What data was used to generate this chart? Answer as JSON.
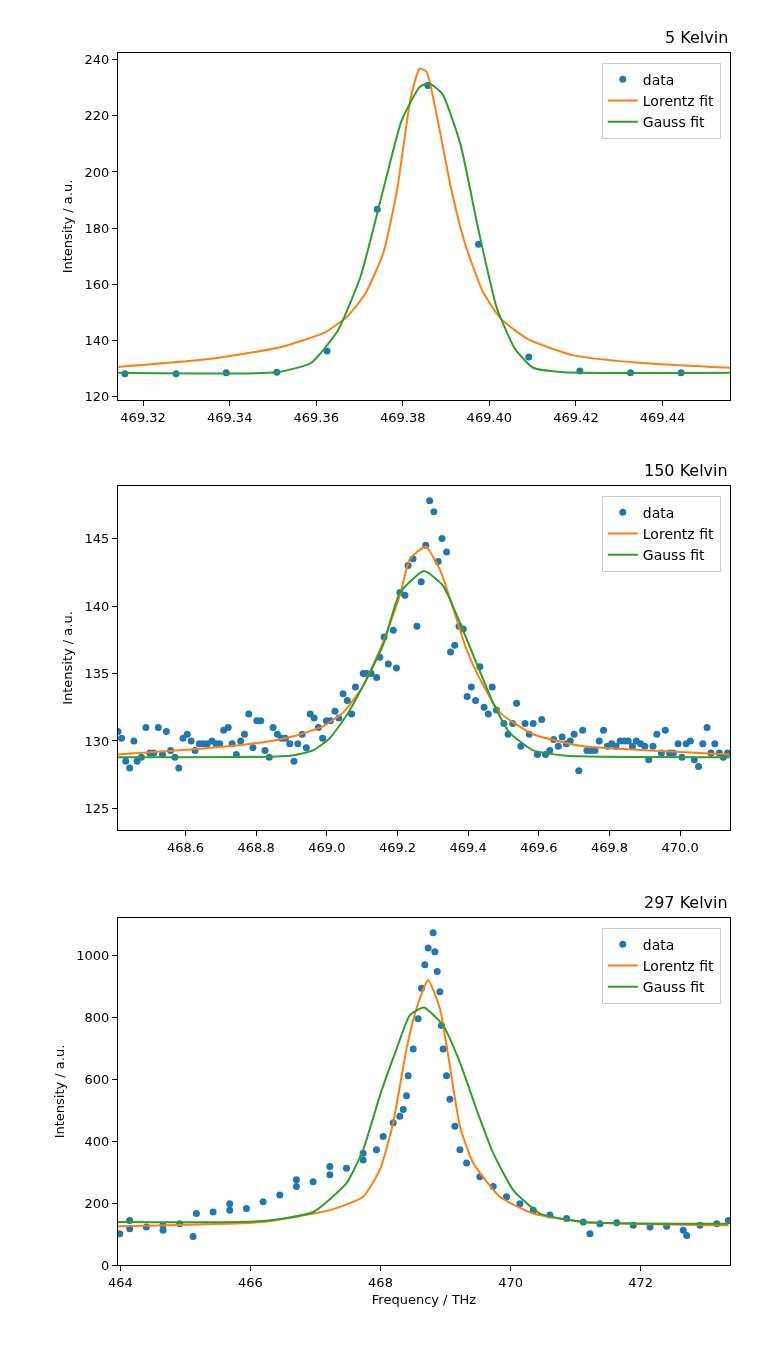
{
  "chart_data": [
    {
      "type": "scatter",
      "title": "5 Kelvin",
      "ylabel": "Intensity / a.u.",
      "xlim": [
        469.3142,
        469.4556
      ],
      "ylim": [
        118.7,
        242.4
      ],
      "xticks": [
        {
          "value": 469.32,
          "label": "469.32"
        },
        {
          "value": 469.34,
          "label": "469.34"
        },
        {
          "value": 469.36,
          "label": "469.36"
        },
        {
          "value": 469.38,
          "label": "469.38"
        },
        {
          "value": 469.4,
          "label": "469.40"
        },
        {
          "value": 469.42,
          "label": "469.42"
        },
        {
          "value": 469.44,
          "label": "469.44"
        }
      ],
      "yticks": [
        120,
        140,
        160,
        180,
        200,
        220,
        240
      ],
      "legend": "top right",
      "series": [
        {
          "name": "data",
          "marker": "circle",
          "color": "#1f77b4",
          "x": [
            469.3158,
            469.3276,
            469.3392,
            469.3509,
            469.3625,
            469.3741,
            469.3858,
            469.3975,
            469.4091,
            469.4209,
            469.4326,
            469.4443
          ],
          "values": [
            128.1,
            128.1,
            128.4,
            128.6,
            136.2,
            186.7,
            230.8,
            174.2,
            134.0,
            129.0,
            128.4,
            128.4
          ]
        },
        {
          "name": "Lorentz fit",
          "type": "line",
          "marker": "none",
          "color": "#ff7f0e",
          "x": [
            469.3142,
            469.3357,
            469.3514,
            469.3619,
            469.3671,
            469.3713,
            469.3755,
            469.3787,
            469.3818,
            469.3839,
            469.3855,
            469.3881,
            469.3912,
            469.3944,
            469.3985,
            469.4027,
            469.409,
            469.4195,
            469.4352,
            469.4556
          ],
          "values": [
            130.5,
            133.4,
            137.4,
            142.7,
            148.4,
            156.5,
            171.1,
            193.8,
            226.2,
            236.8,
            235.7,
            218.2,
            193.8,
            174.3,
            157.3,
            147.6,
            140.3,
            134.6,
            131.9,
            130.2
          ]
        },
        {
          "name": "Gauss fit",
          "type": "line",
          "marker": "none",
          "color": "#2ca02c",
          "x": [
            469.3142,
            469.3509,
            469.3588,
            469.365,
            469.3703,
            469.3755,
            469.3797,
            469.3839,
            469.386,
            469.3891,
            469.3933,
            469.3975,
            469.4017,
            469.4059,
            469.4101,
            469.4174,
            469.4556
          ],
          "values": [
            128.4,
            128.6,
            131.9,
            143.5,
            163.0,
            193.8,
            218.2,
            230.3,
            231.6,
            227.9,
            210.0,
            179.2,
            151.6,
            137.0,
            130.2,
            128.6,
            128.4
          ]
        }
      ]
    },
    {
      "type": "scatter",
      "title": "150 Kelvin",
      "ylabel": "Intensity / a.u.",
      "xlim": [
        468.409,
        470.141
      ],
      "ylim": [
        123.4,
        148.9
      ],
      "xticks": [
        468.6,
        468.8,
        {
          "value": 469.0,
          "label": "469.0"
        },
        469.2,
        469.4,
        469.6,
        469.8,
        {
          "value": 470.0,
          "label": "470.0"
        }
      ],
      "yticks": [
        125,
        130,
        135,
        140,
        145
      ],
      "legend": "top right",
      "series": [
        {
          "name": "data",
          "marker": "circle",
          "color": "#1f77b4",
          "x": [
            468.409,
            468.419,
            468.431,
            468.442,
            468.454,
            468.463,
            468.475,
            468.488,
            468.499,
            468.51,
            468.523,
            468.535,
            468.546,
            468.558,
            468.57,
            468.581,
            468.593,
            468.605,
            468.616,
            468.627,
            468.639,
            468.65,
            468.662,
            468.675,
            468.686,
            468.697,
            468.708,
            468.721,
            468.732,
            468.744,
            468.756,
            468.767,
            468.779,
            468.791,
            468.802,
            468.813,
            468.825,
            468.837,
            468.848,
            468.86,
            468.872,
            468.883,
            468.895,
            468.907,
            468.918,
            468.93,
            468.942,
            468.953,
            468.964,
            468.976,
            468.988,
            468.999,
            469.01,
            469.023,
            469.034,
            469.046,
            469.058,
            469.07,
            469.081,
            469.103,
            469.112,
            469.125,
            469.141,
            469.15,
            469.162,
            469.174,
            469.188,
            469.197,
            469.207,
            469.221,
            469.23,
            469.244,
            469.255,
            469.267,
            469.28,
            469.291,
            469.303,
            469.315,
            469.326,
            469.339,
            469.35,
            469.362,
            469.374,
            469.386,
            469.397,
            469.409,
            469.421,
            469.433,
            469.445,
            469.457,
            469.468,
            469.48,
            469.501,
            469.513,
            469.526,
            469.537,
            469.549,
            469.561,
            469.573,
            469.584,
            469.596,
            469.608,
            469.619,
            469.631,
            469.642,
            469.655,
            469.666,
            469.678,
            469.689,
            469.7,
            469.713,
            469.724,
            469.736,
            469.747,
            469.759,
            469.771,
            469.783,
            469.794,
            469.806,
            469.818,
            469.83,
            469.842,
            469.853,
            469.865,
            469.876,
            469.888,
            469.9,
            469.911,
            469.923,
            469.934,
            469.947,
            469.958,
            469.97,
            469.981,
            469.994,
            470.005,
            470.017,
            470.029,
            470.04,
            470.052,
            470.064,
            470.076,
            470.087,
            470.098,
            470.111,
            470.122,
            470.134
          ],
          "values": [
            130.7,
            130.2,
            128.5,
            128.0,
            130.0,
            128.5,
            128.8,
            131.0,
            129.1,
            129.1,
            131.0,
            129.0,
            130.7,
            129.3,
            128.8,
            128.0,
            130.2,
            130.5,
            130.0,
            129.3,
            129.8,
            129.8,
            129.8,
            130.0,
            129.8,
            129.8,
            130.8,
            131.0,
            129.8,
            129.0,
            130.0,
            130.5,
            132.0,
            129.5,
            131.5,
            131.5,
            129.3,
            128.8,
            131.0,
            130.5,
            130.2,
            130.2,
            129.8,
            128.5,
            129.8,
            130.5,
            129.5,
            132.0,
            131.7,
            131.0,
            130.2,
            131.5,
            131.5,
            132.2,
            131.7,
            133.5,
            133.0,
            132.0,
            134.0,
            135.0,
            135.0,
            135.0,
            134.7,
            136.2,
            137.7,
            135.7,
            138.2,
            135.4,
            141.0,
            140.8,
            143.0,
            143.5,
            138.5,
            141.8,
            144.5,
            147.8,
            147.0,
            143.3,
            145.0,
            144.0,
            136.6,
            137.1,
            138.5,
            138.3,
            133.3,
            134.0,
            133.0,
            135.5,
            132.5,
            132.0,
            134.0,
            132.3,
            131.3,
            130.5,
            131.3,
            132.8,
            129.6,
            131.3,
            130.5,
            131.3,
            129.0,
            131.6,
            129.0,
            129.3,
            130.1,
            129.6,
            130.3,
            129.8,
            130.0,
            130.5,
            127.8,
            130.8,
            129.3,
            129.3,
            129.3,
            130.0,
            130.8,
            129.6,
            129.8,
            129.6,
            130.0,
            130.0,
            130.0,
            129.6,
            130.0,
            129.8,
            129.6,
            128.6,
            129.6,
            130.5,
            129.1,
            130.8,
            129.1,
            129.1,
            129.8,
            128.8,
            129.8,
            130.0,
            128.6,
            128.1,
            129.8,
            131.0,
            129.1,
            129.8,
            129.1,
            128.8,
            129.1
          ]
        },
        {
          "name": "Lorentz fit",
          "type": "line",
          "marker": "none",
          "color": "#ff7f0e",
          "x": [
            468.409,
            468.631,
            468.82,
            468.914,
            468.99,
            469.046,
            469.103,
            469.159,
            469.207,
            469.235,
            469.28,
            469.32,
            469.358,
            469.395,
            469.433,
            469.49,
            469.584,
            469.726,
            469.914,
            470.14
          ],
          "values": [
            129.0,
            129.4,
            129.9,
            130.4,
            131.1,
            132.1,
            134.1,
            137.3,
            140.8,
            143.5,
            144.4,
            142.7,
            139.8,
            136.8,
            134.6,
            132.1,
            130.5,
            129.6,
            129.3,
            129.0
          ]
        },
        {
          "name": "Gauss fit",
          "type": "line",
          "marker": "none",
          "color": "#2ca02c",
          "x": [
            468.409,
            468.895,
            468.961,
            469.008,
            469.056,
            469.103,
            469.159,
            469.207,
            469.275,
            469.329,
            469.376,
            469.423,
            469.471,
            469.518,
            469.584,
            469.678,
            470.14
          ],
          "values": [
            128.8,
            128.9,
            129.3,
            130.2,
            131.9,
            134.1,
            137.1,
            141.0,
            142.6,
            141.5,
            138.8,
            135.8,
            132.8,
            130.6,
            129.3,
            128.9,
            128.8
          ]
        }
      ]
    },
    {
      "type": "scatter",
      "title": "297 Kelvin",
      "xlabel": "Frequency / THz",
      "ylabel": "Intensity / a.u.",
      "xlim": [
        463.964,
        473.374
      ],
      "ylim": [
        0,
        1120
      ],
      "xticks": [
        464,
        466,
        468,
        470,
        472
      ],
      "yticks": [
        0,
        200,
        400,
        600,
        800,
        1000
      ],
      "legend": "top right",
      "series": [
        {
          "name": "data",
          "marker": "circle",
          "color": "#1f77b4",
          "x": [
            463.99,
            464.144,
            464.144,
            464.4,
            464.656,
            464.656,
            464.913,
            465.118,
            465.169,
            465.426,
            465.682,
            465.682,
            465.938,
            466.195,
            466.451,
            466.708,
            466.708,
            466.964,
            467.221,
            467.221,
            467.477,
            467.733,
            467.733,
            467.938,
            468.041,
            468.195,
            468.297,
            468.349,
            468.4,
            468.426,
            468.503,
            468.579,
            468.631,
            468.682,
            468.733,
            468.81,
            468.836,
            468.872,
            468.913,
            468.938,
            468.964,
            469.015,
            469.067,
            469.144,
            469.221,
            469.323,
            469.528,
            469.733,
            469.938,
            470.144,
            470.349,
            470.605,
            470.862,
            471.118,
            471.221,
            471.374,
            471.631,
            471.887,
            472.144,
            472.4,
            472.656,
            472.708,
            472.913,
            473.169,
            473.349
          ],
          "values": [
            101,
            117,
            144,
            123,
            128,
            112,
            133,
            92,
            166,
            171,
            177,
            198,
            182,
            204,
            226,
            253,
            275,
            269,
            291,
            318,
            312,
            339,
            361,
            372,
            415,
            459,
            480,
            502,
            546,
            611,
            697,
            795,
            893,
            969,
            1023,
            1072,
            1011,
            947,
            882,
            773,
            697,
            611,
            535,
            448,
            372,
            329,
            285,
            253,
            220,
            198,
            177,
            161,
            150,
            139,
            101,
            133,
            136,
            128,
            123,
            125,
            112,
            95,
            128,
            133,
            144
          ]
        },
        {
          "name": "Lorentz fit",
          "type": "line",
          "marker": "none",
          "color": "#ff7f0e",
          "x": [
            463.964,
            466.195,
            467.221,
            467.733,
            467.99,
            468.195,
            468.4,
            468.554,
            468.733,
            468.913,
            469.067,
            469.221,
            469.426,
            469.836,
            470.349,
            471.118,
            473.349
          ],
          "values": [
            125,
            139,
            177,
            220,
            307,
            459,
            697,
            828,
            920,
            828,
            643,
            448,
            329,
            220,
            166,
            139,
            128
          ]
        },
        {
          "name": "Gauss fit",
          "type": "line",
          "marker": "none",
          "color": "#2ca02c",
          "x": [
            463.964,
            466.195,
            466.964,
            467.477,
            467.733,
            467.99,
            468.246,
            468.451,
            468.667,
            468.964,
            469.221,
            469.477,
            469.733,
            470.041,
            470.451,
            471.118,
            473.349
          ],
          "values": [
            139,
            142,
            171,
            264,
            372,
            546,
            697,
            806,
            831,
            773,
            654,
            502,
            361,
            242,
            166,
            139,
            133
          ]
        }
      ]
    }
  ]
}
